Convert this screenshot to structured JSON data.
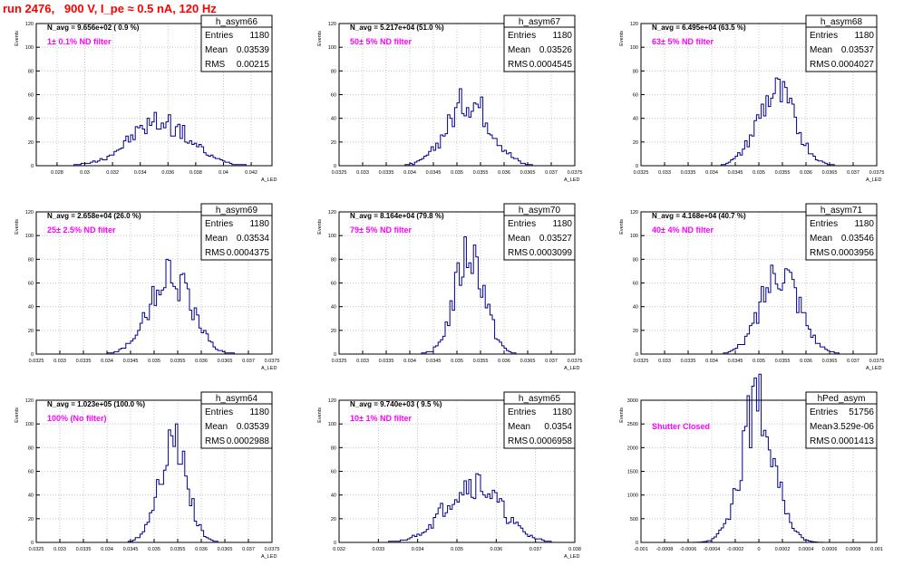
{
  "page_title": "run 2476,   900 V, I_pe ≈ 0.5 nA, 120 Hz",
  "colors": {
    "title": "#ff0000",
    "annotation": "#ff00ff",
    "histogram": "#00008b",
    "grid": "#bbbbbb",
    "axis": "#000000"
  },
  "chart_data": [
    {
      "type": "histogram",
      "name": "h_asym66",
      "stats": {
        "labels": [
          "Entries",
          "Mean",
          "RMS"
        ],
        "values": [
          "1180",
          "0.03539",
          "0.00215"
        ]
      },
      "n_avg": "N_avg = 9.656e+02 ( 0.9 %)",
      "filter": "1± 0.1% ND filter",
      "ylabel": "Events",
      "xlabel": "A_LED",
      "xlim": [
        0.0265,
        0.0435
      ],
      "ylim": [
        0,
        120
      ],
      "xticks": [
        "0.028",
        "0.03",
        "0.032",
        "0.034",
        "0.036",
        "0.038",
        "0.04",
        "0.042"
      ],
      "xtick_values": [
        0.028,
        0.03,
        0.032,
        0.034,
        0.036,
        0.038,
        0.04,
        0.042
      ],
      "yticks": [
        "0",
        "20",
        "40",
        "60",
        "80",
        "100",
        "120"
      ],
      "ytick_values": [
        0,
        20,
        40,
        60,
        80,
        100,
        120
      ],
      "mean": 0.03539,
      "rms": 0.00215,
      "peak": 37,
      "nbins": 100,
      "x": [],
      "counts": []
    },
    {
      "type": "histogram",
      "name": "h_asym67",
      "stats": {
        "labels": [
          "Entries",
          "Mean",
          "RMS"
        ],
        "values": [
          "1180",
          "0.03526",
          "0.0004545"
        ]
      },
      "n_avg": "N_avg = 5.217e+04 (51.0 %)",
      "filter": "50± 5% ND filter",
      "ylabel": "Events",
      "xlabel": "A_LED",
      "xlim": [
        0.0325,
        0.0375
      ],
      "ylim": [
        0,
        120
      ],
      "xticks": [
        "0.0325",
        "0.033",
        "0.0335",
        "0.034",
        "0.0345",
        "0.035",
        "0.0355",
        "0.036",
        "0.0365",
        "0.037",
        "0.0375"
      ],
      "xtick_values": [
        0.0325,
        0.033,
        0.0335,
        0.034,
        0.0345,
        0.035,
        0.0355,
        0.036,
        0.0365,
        0.037,
        0.0375
      ],
      "yticks": [
        "0",
        "20",
        "40",
        "60",
        "80",
        "100",
        "120"
      ],
      "ytick_values": [
        0,
        20,
        40,
        60,
        80,
        100,
        120
      ],
      "mean": 0.03526,
      "rms": 0.0004545,
      "peak": 56,
      "nbins": 100,
      "x": [],
      "counts": []
    },
    {
      "type": "histogram",
      "name": "h_asym68",
      "stats": {
        "labels": [
          "Entries",
          "Mean",
          "RMS"
        ],
        "values": [
          "1180",
          "0.03537",
          "0.0004027"
        ]
      },
      "n_avg": "N_avg = 6.495e+04 (63.5 %)",
      "filter": "63± 5% ND filter",
      "ylabel": "Events",
      "xlabel": "A_LED",
      "xlim": [
        0.0325,
        0.0375
      ],
      "ylim": [
        0,
        120
      ],
      "xticks": [
        "0.0325",
        "0.033",
        "0.0335",
        "0.034",
        "0.0345",
        "0.035",
        "0.0355",
        "0.036",
        "0.0365",
        "0.037",
        "0.0375"
      ],
      "xtick_values": [
        0.0325,
        0.033,
        0.0335,
        0.034,
        0.0345,
        0.035,
        0.0355,
        0.036,
        0.0365,
        0.037,
        0.0375
      ],
      "yticks": [
        "0",
        "20",
        "40",
        "60",
        "80",
        "100",
        "120"
      ],
      "ytick_values": [
        0,
        20,
        40,
        60,
        80,
        100,
        120
      ],
      "mean": 0.03537,
      "rms": 0.0004027,
      "peak": 61,
      "nbins": 100,
      "x": [],
      "counts": []
    },
    {
      "type": "histogram",
      "name": "h_asym69",
      "stats": {
        "labels": [
          "Entries",
          "Mean",
          "RMS"
        ],
        "values": [
          "1180",
          "0.03534",
          "0.0004375"
        ]
      },
      "n_avg": "N_avg = 2.658e+04 (26.0 %)",
      "filter": "25± 2.5% ND filter",
      "ylabel": "Events",
      "xlabel": "A_LED",
      "xlim": [
        0.0325,
        0.0375
      ],
      "ylim": [
        0,
        120
      ],
      "xticks": [
        "0.0325",
        "0.033",
        "0.0335",
        "0.034",
        "0.0345",
        "0.035",
        "0.0355",
        "0.036",
        "0.0365",
        "0.037",
        "0.0375"
      ],
      "xtick_values": [
        0.0325,
        0.033,
        0.0335,
        0.034,
        0.0345,
        0.035,
        0.0355,
        0.036,
        0.0365,
        0.037,
        0.0375
      ],
      "yticks": [
        "0",
        "20",
        "40",
        "60",
        "80",
        "100",
        "120"
      ],
      "ytick_values": [
        0,
        20,
        40,
        60,
        80,
        100,
        120
      ],
      "mean": 0.03534,
      "rms": 0.0004375,
      "peak": 67,
      "nbins": 100,
      "x": [],
      "counts": []
    },
    {
      "type": "histogram",
      "name": "h_asym70",
      "stats": {
        "labels": [
          "Entries",
          "Mean",
          "RMS"
        ],
        "values": [
          "1180",
          "0.03527",
          "0.0003099"
        ]
      },
      "n_avg": "N_avg = 8.164e+04 (79.8 %)",
      "filter": "79± 5% ND filter",
      "ylabel": "Events",
      "xlabel": "A_LED",
      "xlim": [
        0.0325,
        0.0375
      ],
      "ylim": [
        0,
        120
      ],
      "xticks": [
        "0.0325",
        "0.033",
        "0.0335",
        "0.034",
        "0.0345",
        "0.035",
        "0.0355",
        "0.036",
        "0.0365",
        "0.037",
        "0.0375"
      ],
      "xtick_values": [
        0.0325,
        0.033,
        0.0335,
        0.034,
        0.0345,
        0.035,
        0.0355,
        0.036,
        0.0365,
        0.037,
        0.0375
      ],
      "yticks": [
        "0",
        "20",
        "40",
        "60",
        "80",
        "100",
        "120"
      ],
      "ytick_values": [
        0,
        20,
        40,
        60,
        80,
        100,
        120
      ],
      "mean": 0.03527,
      "rms": 0.0003099,
      "peak": 86,
      "nbins": 100,
      "x": [],
      "counts": []
    },
    {
      "type": "histogram",
      "name": "h_asym71",
      "stats": {
        "labels": [
          "Entries",
          "Mean",
          "RMS"
        ],
        "values": [
          "1180",
          "0.03546",
          "0.0003956"
        ]
      },
      "n_avg": "N_avg = 4.168e+04 (40.7 %)",
      "filter": "40± 4% ND filter",
      "ylabel": "Events",
      "xlabel": "A_LED",
      "xlim": [
        0.0325,
        0.0375
      ],
      "ylim": [
        0,
        120
      ],
      "xticks": [
        "0.0325",
        "0.033",
        "0.0335",
        "0.034",
        "0.0345",
        "0.035",
        "0.0355",
        "0.036",
        "0.0365",
        "0.037",
        "0.0375"
      ],
      "xtick_values": [
        0.0325,
        0.033,
        0.0335,
        0.034,
        0.0345,
        0.035,
        0.0355,
        0.036,
        0.0365,
        0.037,
        0.0375
      ],
      "yticks": [
        "0",
        "20",
        "40",
        "60",
        "80",
        "100",
        "120"
      ],
      "ytick_values": [
        0,
        20,
        40,
        60,
        80,
        100,
        120
      ],
      "mean": 0.03546,
      "rms": 0.0003956,
      "peak": 74,
      "nbins": 100,
      "x": [],
      "counts": []
    },
    {
      "type": "histogram",
      "name": "h_asym64",
      "stats": {
        "labels": [
          "Entries",
          "Mean",
          "RMS"
        ],
        "values": [
          "1180",
          "0.03539",
          "0.0002988"
        ]
      },
      "n_avg": "N_avg = 1.023e+05 (100.0 %)",
      "filter": "100% (No filter)",
      "ylabel": "Events",
      "xlabel": "A_LED",
      "xlim": [
        0.0325,
        0.0375
      ],
      "ylim": [
        0,
        120
      ],
      "xticks": [
        "0.0325",
        "0.033",
        "0.0335",
        "0.034",
        "0.0345",
        "0.035",
        "0.0355",
        "0.036",
        "0.0365",
        "0.037",
        "0.0375"
      ],
      "xtick_values": [
        0.0325,
        0.033,
        0.0335,
        0.034,
        0.0345,
        0.035,
        0.0355,
        0.036,
        0.0365,
        0.037,
        0.0375
      ],
      "yticks": [
        "0",
        "20",
        "40",
        "60",
        "80",
        "100",
        "120"
      ],
      "ytick_values": [
        0,
        20,
        40,
        60,
        80,
        100,
        120
      ],
      "mean": 0.03539,
      "rms": 0.0002988,
      "peak": 85,
      "nbins": 100,
      "x": [],
      "counts": []
    },
    {
      "type": "histogram",
      "name": "h_asym65",
      "stats": {
        "labels": [
          "Entries",
          "Mean",
          "RMS"
        ],
        "values": [
          "1180",
          "0.0354",
          "0.0006958"
        ]
      },
      "n_avg": "N_avg = 9.740e+03 ( 9.5 %)",
      "filter": "10± 1% ND filter",
      "ylabel": "Events",
      "xlabel": "A_LED",
      "xlim": [
        0.032,
        0.038
      ],
      "ylim": [
        0,
        120
      ],
      "xticks": [
        "0.032",
        "0.033",
        "0.034",
        "0.035",
        "0.036",
        "0.037",
        "0.038"
      ],
      "xtick_values": [
        0.032,
        0.033,
        0.034,
        0.035,
        0.036,
        0.037,
        0.038
      ],
      "yticks": [
        "0",
        "20",
        "40",
        "60",
        "80",
        "100",
        "120"
      ],
      "ytick_values": [
        0,
        20,
        40,
        60,
        80,
        100,
        120
      ],
      "mean": 0.0354,
      "rms": 0.0006958,
      "peak": 50,
      "nbins": 100,
      "x": [],
      "counts": []
    },
    {
      "type": "histogram",
      "name": "hPed_asym",
      "stats": {
        "labels": [
          "Entries",
          "Mean",
          "RMS"
        ],
        "values": [
          "51756",
          "-3.529e-06",
          "0.0001413"
        ]
      },
      "n_avg": "",
      "filter": "Shutter Closed",
      "ylabel": "Events",
      "xlabel": "",
      "xlim": [
        -0.001,
        0.001
      ],
      "ylim": [
        0,
        3000
      ],
      "xticks": [
        "-0.001",
        "-0.0008",
        "-0.0006",
        "-0.0004",
        "-0.0002",
        "0",
        "0.0002",
        "0.0004",
        "0.0006",
        "0.0008",
        "0.001"
      ],
      "xtick_values": [
        -0.001,
        -0.0008,
        -0.0006,
        -0.0004,
        -0.0002,
        0,
        0.0002,
        0.0004,
        0.0006,
        0.0008,
        0.001
      ],
      "yticks": [
        "0",
        "500",
        "1000",
        "1500",
        "2000",
        "2500",
        "3000"
      ],
      "ytick_values": [
        0,
        500,
        1000,
        1500,
        2000,
        2500,
        3000
      ],
      "mean": -3.529e-06,
      "rms": 0.0001413,
      "peak": 2950,
      "nbins": 100,
      "x": [],
      "counts": []
    }
  ]
}
